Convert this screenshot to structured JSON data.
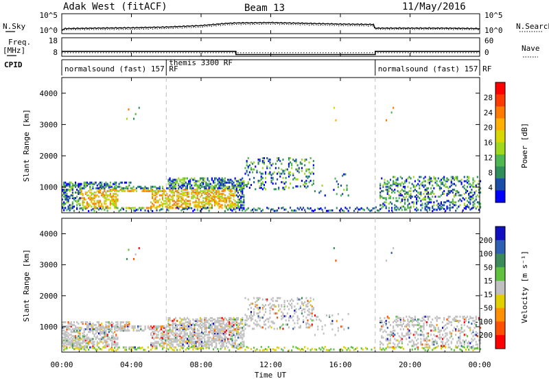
{
  "header": {
    "station": "Adak West (fitACF)",
    "beam": "Beam 13",
    "date": "11/May/2016"
  },
  "top_panels": {
    "nsky_label": "N.Sky",
    "nsearch_label": "N.Search",
    "nsky_ticks": [
      "10^5",
      "10^0"
    ],
    "nsearch_ticks": [
      "10^5",
      "10^0"
    ],
    "freq_label_1": "Freq.",
    "freq_label_2": "[MHz]",
    "freq_ticks": [
      "18",
      "8"
    ],
    "nave_label": "Nave",
    "nave_ticks": [
      "60",
      "0"
    ],
    "cpid_label": "CPID",
    "cpid_segments": [
      {
        "name": "normalsound (fast) 157 RF",
        "start": 0,
        "end": 6
      },
      {
        "name": "themis 3300 RF",
        "start": 6,
        "end": 18
      },
      {
        "name": "normalsound (fast) 157 RF",
        "start": 18,
        "end": 24
      }
    ]
  },
  "chart_data": [
    {
      "type": "line",
      "panel": "noise",
      "x": [
        0,
        0.2,
        4,
        6,
        8,
        9.5,
        10,
        12,
        14,
        16,
        17.9,
        18,
        20,
        22,
        24
      ],
      "series": [
        {
          "name": "N.Sky",
          "values": [
            0.8,
            1.2,
            1.4,
            1.6,
            2.0,
            2.6,
            2.7,
            2.8,
            2.6,
            2.4,
            2.3,
            1.3,
            1.3,
            1.3,
            1.2
          ]
        },
        {
          "name": "N.Search",
          "values": [
            0.6,
            0.9,
            1.0,
            1.2,
            1.6,
            2.2,
            2.3,
            2.4,
            2.2,
            2.0,
            1.9,
            1.0,
            1.0,
            1.0,
            0.9
          ]
        }
      ],
      "ylim": [
        0,
        5
      ],
      "scale": "log"
    },
    {
      "type": "line",
      "panel": "freq_nave",
      "x": [
        0,
        10,
        10,
        18,
        18,
        24
      ],
      "series": [
        {
          "name": "Freq.",
          "values": [
            10.5,
            10.5,
            8.6,
            8.6,
            10.5,
            10.5
          ]
        },
        {
          "name": "Nave",
          "values": [
            10,
            10,
            10,
            10,
            10,
            10
          ]
        }
      ],
      "ylim_freq": [
        8,
        18
      ],
      "ylim_nave": [
        0,
        60
      ]
    },
    {
      "type": "heatmap",
      "panel": "power",
      "ylabel": "Slant Range [km]",
      "yticks": [
        1000,
        2000,
        3000,
        4000
      ],
      "ylim": [
        180,
        4500
      ],
      "cbar_label": "Power [dB]",
      "cbar_ticks": [
        "28",
        "24",
        "20",
        "16",
        "12",
        "8",
        "4"
      ],
      "cbar_colors": [
        "#ff0000",
        "#ff3a00",
        "#ff7a00",
        "#ffb000",
        "#d8d800",
        "#a0d820",
        "#50b850",
        "#2f8f5a",
        "#1a4ca8",
        "#0000ff"
      ]
    },
    {
      "type": "heatmap",
      "panel": "velocity",
      "ylabel": "Slant Range [km]",
      "yticks": [
        1000,
        2000,
        3000,
        4000
      ],
      "ylim": [
        180,
        4500
      ],
      "cbar_label": "Velocity [m s⁻¹]",
      "cbar_ticks": [
        "200",
        "100",
        "50",
        "15",
        "-15",
        "-50",
        "-100",
        "-200"
      ],
      "cbar_colors": [
        "#1010c0",
        "#2f5fb0",
        "#3a8a5a",
        "#60c040",
        "#c0c0c0",
        "#e0d000",
        "#ff9000",
        "#ff5000",
        "#ff0000"
      ]
    }
  ],
  "xaxis": {
    "ticks": [
      "00:00",
      "04:00",
      "08:00",
      "12:00",
      "16:00",
      "20:00",
      "00:00"
    ],
    "label": "Time UT"
  }
}
